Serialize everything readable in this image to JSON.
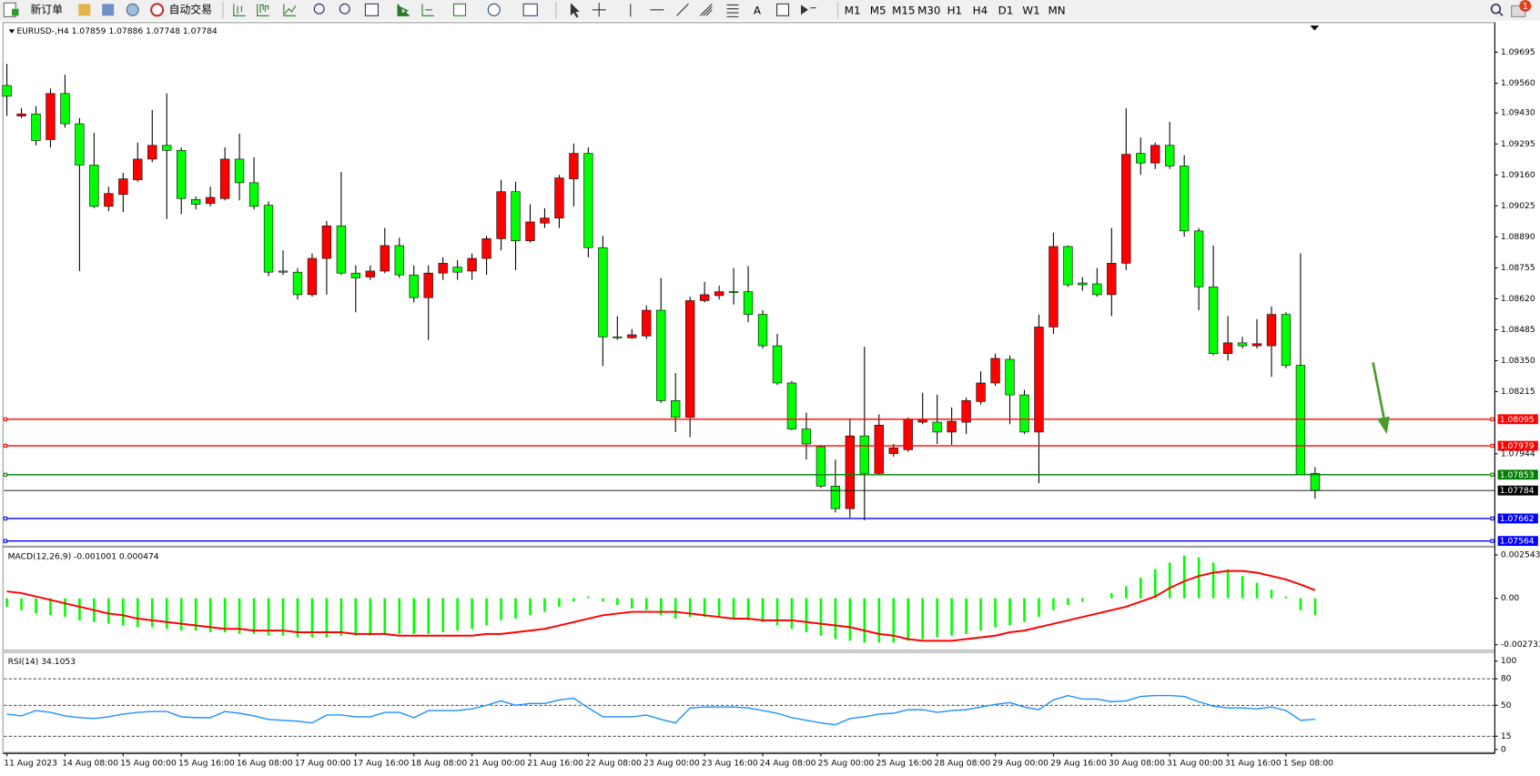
{
  "toolbar": {
    "new_order": "新订单",
    "auto_trading": "自动交易",
    "text_tool": "A",
    "timeframes": [
      "M1",
      "M5",
      "M15",
      "M30",
      "H1",
      "H4",
      "D1",
      "W1",
      "MN"
    ],
    "notification_count": "1"
  },
  "chart_data": [
    {
      "type": "candlestick",
      "title": "EURUSD-,H4  1.07859 1.07886 1.07748 1.07784",
      "up_color": "#ff0000",
      "down_color": "#00ff00",
      "wick_color": "#000000",
      "grid": false,
      "categories": [
        "11 Aug 2023",
        null,
        null,
        null,
        "14 Aug 08:00",
        null,
        null,
        null,
        "15 Aug 00:00",
        null,
        null,
        null,
        "15 Aug 16:00",
        null,
        null,
        null,
        "16 Aug 08:00",
        null,
        null,
        null,
        "17 Aug 00:00",
        null,
        null,
        null,
        "17 Aug 16:00",
        null,
        null,
        null,
        "18 Aug 08:00",
        null,
        null,
        null,
        "21 Aug 00:00",
        null,
        null,
        null,
        "21 Aug 16:00",
        null,
        null,
        null,
        "22 Aug 08:00",
        null,
        null,
        null,
        "23 Aug 00:00",
        null,
        null,
        null,
        "23 Aug 16:00",
        null,
        null,
        null,
        "24 Aug 08:00",
        null,
        null,
        null,
        "25 Aug 00:00",
        null,
        null,
        null,
        "25 Aug 16:00",
        null,
        null,
        null,
        "28 Aug 08:00",
        null,
        null,
        null,
        "29 Aug 00:00",
        null,
        null,
        null,
        "29 Aug 16:00",
        null,
        null,
        null,
        "30 Aug 08:00",
        null,
        null,
        null,
        "31 Aug 00:00",
        null,
        null,
        null,
        "31 Aug 16:00",
        null,
        null,
        null,
        "1 Sep 08:00",
        null,
        null
      ],
      "open": [
        1.0955,
        1.09417,
        1.09426,
        1.09314,
        1.09515,
        1.09383,
        1.09203,
        1.09023,
        1.09075,
        1.09139,
        1.09229,
        1.09289,
        1.09267,
        1.09053,
        1.09036,
        1.09057,
        1.09229,
        1.09126,
        1.09028,
        1.08741,
        1.08736,
        1.08638,
        1.08796,
        1.08938,
        1.08732,
        1.08715,
        1.08741,
        1.08852,
        1.08724,
        1.08625,
        1.08732,
        1.08758,
        1.08741,
        1.08796,
        1.08882,
        1.09087,
        1.08873,
        1.0895,
        1.08972,
        1.09143,
        1.09254,
        1.08843,
        1.08454,
        1.0845,
        1.08458,
        1.0857,
        1.08176,
        1.08103,
        1.08612,
        1.08634,
        1.08651,
        1.08651,
        1.08552,
        1.08415,
        1.08253,
        1.08052,
        1.07975,
        1.07803,
        1.07705,
        1.08022,
        1.07859,
        1.07945,
        1.07962,
        1.08082,
        1.08082,
        1.08039,
        1.08082,
        1.08172,
        1.08253,
        1.08356,
        1.08201,
        1.08039,
        1.08497,
        1.08848,
        1.08689,
        1.08685,
        1.08638,
        1.08775,
        1.09254,
        1.09212,
        1.09289,
        1.09199,
        1.08916,
        1.08672,
        1.08381,
        1.08428,
        1.08415,
        1.08415,
        1.08552,
        1.0833,
        1.07859
      ],
      "high": [
        1.09644,
        1.09451,
        1.0946,
        1.09537,
        1.09597,
        1.09408,
        1.09344,
        1.09109,
        1.09169,
        1.09301,
        1.09443,
        1.09515,
        1.0928,
        1.09066,
        1.09109,
        1.0928,
        1.0934,
        1.09237,
        1.09045,
        1.08831,
        1.08754,
        1.08818,
        1.08959,
        1.09173,
        1.08766,
        1.08766,
        1.08929,
        1.08886,
        1.08766,
        1.08766,
        1.08801,
        1.08788,
        1.08818,
        1.08895,
        1.09139,
        1.0913,
        1.09032,
        1.09015,
        1.0916,
        1.09297,
        1.0928,
        1.08895,
        1.08544,
        1.08488,
        1.08591,
        1.08711,
        1.08296,
        1.08629,
        1.08694,
        1.08677,
        1.08754,
        1.08762,
        1.0857,
        1.08467,
        1.08261,
        1.08124,
        1.07983,
        1.07919,
        1.08099,
        1.08411,
        1.08116,
        1.07987,
        1.08103,
        1.0821,
        1.08201,
        1.08146,
        1.08189,
        1.08304,
        1.08381,
        1.08373,
        1.08223,
        1.08552,
        1.08908,
        1.08852,
        1.08715,
        1.08754,
        1.08929,
        1.09451,
        1.09323,
        1.09301,
        1.09391,
        1.09246,
        1.08929,
        1.08852,
        1.08544,
        1.08454,
        1.08531,
        1.08587,
        1.08561,
        1.08818,
        1.07886
      ],
      "low": [
        1.09417,
        1.09408,
        1.09289,
        1.0928,
        1.09366,
        1.08741,
        1.09015,
        1.09002,
        1.08998,
        1.0913,
        1.09216,
        1.08968,
        1.08989,
        1.0901,
        1.09023,
        1.09049,
        1.09049,
        1.0901,
        1.08719,
        1.08724,
        1.08617,
        1.08629,
        1.08638,
        1.08724,
        1.08561,
        1.08702,
        1.08732,
        1.08711,
        1.08604,
        1.08441,
        1.08702,
        1.08702,
        1.08702,
        1.08724,
        1.08831,
        1.08745,
        1.08865,
        1.08929,
        1.08929,
        1.09023,
        1.08801,
        1.08326,
        1.08441,
        1.08445,
        1.08445,
        1.08167,
        1.08039,
        1.08017,
        1.08604,
        1.08617,
        1.08595,
        1.08518,
        1.08403,
        1.08244,
        1.08047,
        1.07919,
        1.07795,
        1.07688,
        1.07666,
        1.07654,
        1.07851,
        1.07932,
        1.07953,
        1.08073,
        1.07987,
        1.07983,
        1.0803,
        1.08159,
        1.0824,
        1.08073,
        1.0803,
        1.07816,
        1.08467,
        1.08672,
        1.08655,
        1.08629,
        1.08544,
        1.08745,
        1.0916,
        1.09186,
        1.09186,
        1.08891,
        1.0857,
        1.08373,
        1.08351,
        1.08403,
        1.08403,
        1.08279,
        1.08317,
        1.07853,
        1.07748
      ],
      "close": [
        1.09503,
        1.09426,
        1.0931,
        1.09515,
        1.09383,
        1.09203,
        1.09023,
        1.09079,
        1.09143,
        1.09229,
        1.09289,
        1.09267,
        1.09057,
        1.09032,
        1.09062,
        1.09229,
        1.09126,
        1.09023,
        1.08736,
        1.08736,
        1.08638,
        1.08796,
        1.08938,
        1.08732,
        1.08711,
        1.08741,
        1.08852,
        1.08724,
        1.08625,
        1.08732,
        1.08775,
        1.08736,
        1.08796,
        1.08882,
        1.09087,
        1.08873,
        1.08955,
        1.08972,
        1.09147,
        1.09254,
        1.08843,
        1.08454,
        1.0845,
        1.08463,
        1.0857,
        1.08176,
        1.08103,
        1.08612,
        1.08638,
        1.08651,
        1.08647,
        1.08552,
        1.08415,
        1.08253,
        1.08052,
        1.07987,
        1.07803,
        1.07705,
        1.08022,
        1.07859,
        1.08069,
        1.0797,
        1.08094,
        1.08094,
        1.08039,
        1.08086,
        1.08176,
        1.08253,
        1.0836,
        1.08201,
        1.08039,
        1.08497,
        1.08848,
        1.08681,
        1.08681,
        1.08638,
        1.08775,
        1.0925,
        1.09212,
        1.09289,
        1.09199,
        1.08916,
        1.08672,
        1.08381,
        1.08428,
        1.08415,
        1.08424,
        1.08552,
        1.0833,
        1.07853,
        1.07784
      ],
      "ylim": [
        1.0755,
        1.0982
      ],
      "yticks": [
        1.09695,
        {
          "value": 1.0956,
          "label": "1.09560"
        },
        {
          "value": 1.0943,
          "label": "1.09430"
        },
        1.09295,
        {
          "value": 1.0916,
          "label": "1.09160"
        },
        1.09025,
        {
          "value": 1.0889,
          "label": "1.08890"
        },
        1.08755,
        {
          "value": 1.0862,
          "label": "1.08620"
        },
        1.08485,
        {
          "value": 1.0835,
          "label": "1.08350"
        },
        1.08215,
        1.07944
      ],
      "levels": [
        {
          "value": 1.08095,
          "color": "#ff0000"
        },
        {
          "value": 1.07979,
          "color": "#ff0000"
        },
        {
          "value": 1.07853,
          "color": "#008000"
        },
        {
          "value": 1.07662,
          "color": "#0000ff"
        },
        {
          "value": 1.07564,
          "color": "#0000ff"
        }
      ],
      "last_price": {
        "value": 1.07784,
        "color": "#000000"
      }
    },
    {
      "type": "macd",
      "title": "MACD(12,26,9) -0.001001 0.000474",
      "histogram": {
        "color": "#00ff00",
        "values": [
          -0.0005,
          -0.0007,
          -0.0009,
          -0.001,
          -0.0011,
          -0.0013,
          -0.0014,
          -0.0015,
          -0.0016,
          -0.0017,
          -0.0017,
          -0.0018,
          -0.0019,
          -0.0019,
          -0.002,
          -0.002,
          -0.0021,
          -0.0021,
          -0.0022,
          -0.0022,
          -0.0023,
          -0.0023,
          -0.0023,
          -0.0022,
          -0.0022,
          -0.0022,
          -0.0021,
          -0.0021,
          -0.0021,
          -0.0021,
          -0.002,
          -0.0019,
          -0.0018,
          -0.0016,
          -0.0013,
          -0.0012,
          -0.001,
          -0.0008,
          -0.0005,
          -0.0002,
          0.0001,
          -0.0002,
          -0.0004,
          -0.0006,
          -0.0007,
          -0.001,
          -0.0012,
          -0.0011,
          -0.0011,
          -0.0011,
          -0.0012,
          -0.0013,
          -0.0014,
          -0.0016,
          -0.0018,
          -0.002,
          -0.0022,
          -0.0024,
          -0.0025,
          -0.0026,
          -0.0026,
          -0.0026,
          -0.0025,
          -0.0024,
          -0.0023,
          -0.0022,
          -0.0021,
          -0.0019,
          -0.0017,
          -0.0016,
          -0.0014,
          -0.0011,
          -0.0007,
          -0.0004,
          -0.0002,
          0,
          0.0003,
          0.0007,
          0.0012,
          0.0017,
          0.0021,
          0.0025,
          0.0024,
          0.0021,
          0.0017,
          0.0013,
          0.0009,
          0.0005,
          0.0001,
          -0.0007,
          -0.001001
        ]
      },
      "signal": {
        "color": "#ff0000",
        "values": [
          0.0004,
          0.0003,
          0.0001,
          -0.0001,
          -0.0003,
          -0.0005,
          -0.0007,
          -0.0009,
          -0.001,
          -0.0012,
          -0.0013,
          -0.0014,
          -0.0015,
          -0.0016,
          -0.0017,
          -0.0018,
          -0.0018,
          -0.0019,
          -0.0019,
          -0.0019,
          -0.002,
          -0.002,
          -0.002,
          -0.002,
          -0.0021,
          -0.0021,
          -0.0021,
          -0.0022,
          -0.0022,
          -0.0022,
          -0.0022,
          -0.0022,
          -0.0022,
          -0.0021,
          -0.0021,
          -0.002,
          -0.0019,
          -0.0018,
          -0.0016,
          -0.0014,
          -0.0012,
          -0.001,
          -0.0009,
          -0.0008,
          -0.0008,
          -0.0008,
          -0.0008,
          -0.0009,
          -0.001,
          -0.0011,
          -0.0012,
          -0.0012,
          -0.0013,
          -0.0013,
          -0.0013,
          -0.0014,
          -0.0015,
          -0.0016,
          -0.0017,
          -0.0019,
          -0.0021,
          -0.0022,
          -0.0024,
          -0.0025,
          -0.0025,
          -0.0025,
          -0.0024,
          -0.0023,
          -0.0022,
          -0.002,
          -0.0019,
          -0.0017,
          -0.0015,
          -0.0013,
          -0.0011,
          -0.0009,
          -0.0007,
          -0.0005,
          -0.0002,
          0.0001,
          0.0006,
          0.001,
          0.0013,
          0.0015,
          0.0016,
          0.0016,
          0.0015,
          0.0013,
          0.0011,
          0.0008,
          0.000474
        ]
      },
      "ylim": [
        -0.003,
        0.003
      ],
      "yticks": [
        0.002543,
        {
          "value": 0,
          "label": "0.00"
        },
        -0.002733
      ]
    },
    {
      "type": "line",
      "title": "RSI(14) 34.1053",
      "color": "#1e90ff",
      "values": [
        40,
        38,
        44,
        42,
        38,
        36,
        35,
        37,
        40,
        42,
        43,
        43,
        37,
        36,
        36,
        43,
        41,
        38,
        34,
        33,
        32,
        30,
        39,
        39,
        37,
        37,
        42,
        42,
        36,
        44,
        44,
        44,
        46,
        50,
        55,
        50,
        52,
        52,
        56,
        58,
        47,
        37,
        37,
        37,
        39,
        34,
        30,
        47,
        48,
        48,
        48,
        47,
        44,
        41,
        36,
        33,
        30,
        28,
        35,
        37,
        40,
        41,
        45,
        45,
        42,
        44,
        45,
        48,
        51,
        53,
        48,
        45,
        56,
        61,
        57,
        57,
        54,
        55,
        60,
        61,
        61,
        60,
        54,
        49,
        47,
        47,
        46,
        48,
        44,
        33,
        34.1053
      ],
      "ylim": [
        0,
        100
      ],
      "yticks": [
        100,
        80,
        50,
        15,
        0
      ],
      "levels": [
        80,
        50,
        15
      ]
    }
  ]
}
